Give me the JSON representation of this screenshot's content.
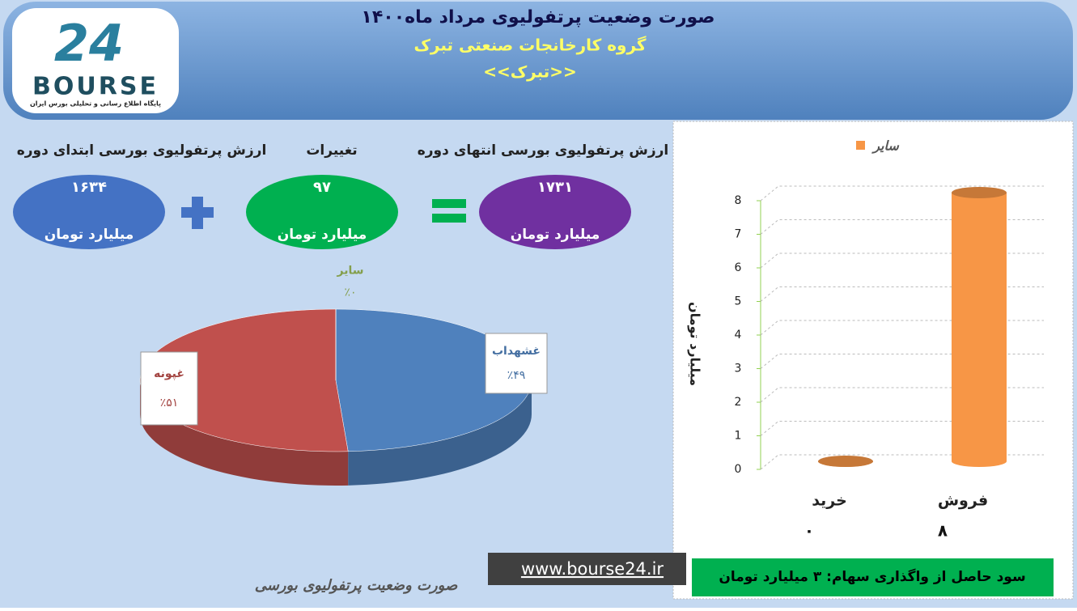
{
  "header": {
    "title": "صورت وضعیت پرتفولیوی مرداد ماه۱۴۰۰",
    "subtitle": "گروه کارخانجات صنعتی تبرک",
    "symbol": "<<تبرک>>"
  },
  "logo": {
    "number": "24",
    "text": "BOURSE",
    "tagline": "پایگاه اطلاع رسانی و تحلیلی بورس ایران"
  },
  "summary": [
    {
      "label": "ارزش پرتفولیوی بورسی ابتدای دوره",
      "value": "۱۶۳۴",
      "unit": "میلیارد تومان",
      "color": "#4472c4"
    },
    {
      "label": "تغییرات",
      "value": "۹۷",
      "unit": "میلیارد تومان",
      "color": "#00b050"
    },
    {
      "label": "ارزش پرتفولیوی بورسی انتهای دوره",
      "value": "۱۷۳۱",
      "unit": "میلیارد تومان",
      "color": "#7030a0"
    }
  ],
  "chart_data": [
    {
      "type": "pie",
      "categories": [
        "غشهداب",
        "غپونه",
        "سایر"
      ],
      "values": [
        49,
        51,
        0
      ],
      "value_labels": [
        "٪۴۹",
        "٪۵۱",
        "٪۰"
      ],
      "colors": [
        "#4f81bd",
        "#c0504d",
        "#9bbb59"
      ]
    },
    {
      "type": "bar",
      "categories": [
        "خرید",
        "فروش"
      ],
      "series": [
        {
          "name": "سایر",
          "color": "#f79646",
          "values": [
            0,
            8
          ],
          "value_labels": [
            "۰",
            "۸"
          ]
        }
      ],
      "ylabel": "میلیارد تومان",
      "ylim": [
        0,
        8
      ],
      "yticks": [
        0,
        1,
        2,
        3,
        4,
        5,
        6,
        7,
        8
      ],
      "grid": true,
      "legend": "top"
    }
  ],
  "footer": {
    "profit": "سود حاصل از واگذاری سهام: ۳ میلیارد تومان",
    "website": "www.bourse24.ir",
    "caption": "صورت وضعیت پرتفولیوی بورسی"
  }
}
